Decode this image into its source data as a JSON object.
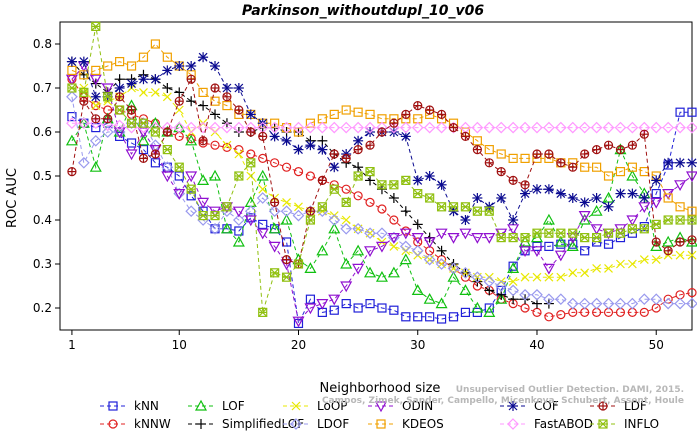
{
  "chart_data": {
    "type": "line",
    "title": "Parkinson_withoutdupl_10_v06",
    "xlabel": "Neighborhood size",
    "ylabel": "ROC AUC",
    "xlim": [
      0,
      53
    ],
    "ylim": [
      0.15,
      0.85
    ],
    "xticks": [
      1,
      10,
      20,
      30,
      40,
      50
    ],
    "yticks": [
      0.2,
      0.3,
      0.4,
      0.5,
      0.6,
      0.7,
      0.8
    ],
    "grid": false,
    "legend_position": "bottom",
    "watermark": [
      "Unsupervised Outlier Detection. DAMI, 2015.",
      "Campos, Zimek, Sander, Campello, Micenkova, Schubert, Assent, Houle"
    ],
    "series": [
      {
        "name": "kNN",
        "color": "#2020d8",
        "marker": "square",
        "values": [
          0.635,
          0.62,
          0.61,
          0.62,
          0.59,
          0.575,
          0.56,
          0.53,
          0.52,
          0.5,
          0.455,
          0.42,
          0.38,
          0.38,
          0.375,
          0.405,
          0.39,
          0.38,
          0.35,
          0.165,
          0.22,
          0.19,
          0.195,
          0.21,
          0.2,
          0.21,
          0.2,
          0.195,
          0.18,
          0.18,
          0.18,
          0.175,
          0.18,
          0.19,
          0.19,
          0.2,
          0.24,
          0.295,
          0.33,
          0.34,
          0.34,
          0.345,
          0.345,
          0.33,
          0.35,
          0.345,
          0.36,
          0.37,
          0.385,
          0.46,
          0.525,
          0.645,
          0.645
        ]
      },
      {
        "name": "kNNW",
        "color": "#e02020",
        "marker": "circle",
        "values": [
          0.72,
          0.68,
          0.66,
          0.65,
          0.65,
          0.64,
          0.63,
          0.62,
          0.6,
          0.59,
          0.585,
          0.575,
          0.57,
          0.565,
          0.56,
          0.55,
          0.54,
          0.53,
          0.52,
          0.51,
          0.5,
          0.49,
          0.48,
          0.47,
          0.455,
          0.44,
          0.425,
          0.4,
          0.375,
          0.35,
          0.33,
          0.31,
          0.29,
          0.27,
          0.25,
          0.24,
          0.22,
          0.21,
          0.2,
          0.19,
          0.18,
          0.185,
          0.19,
          0.19,
          0.19,
          0.19,
          0.19,
          0.19,
          0.19,
          0.2,
          0.22,
          0.23,
          0.235
        ]
      },
      {
        "name": "LOF",
        "color": "#10c010",
        "marker": "triangle-up",
        "values": [
          0.58,
          0.62,
          0.52,
          0.63,
          0.6,
          0.66,
          0.58,
          0.62,
          0.6,
          0.61,
          0.58,
          0.49,
          0.5,
          0.38,
          0.35,
          0.44,
          0.5,
          0.38,
          0.4,
          0.31,
          0.29,
          0.33,
          0.38,
          0.3,
          0.33,
          0.28,
          0.27,
          0.28,
          0.31,
          0.24,
          0.22,
          0.21,
          0.27,
          0.24,
          0.2,
          0.19,
          0.22,
          0.29,
          0.35,
          0.36,
          0.4,
          0.35,
          0.34,
          0.4,
          0.42,
          0.45,
          0.56,
          0.5,
          0.46,
          0.34,
          0.35,
          0.36,
          0.35
        ]
      },
      {
        "name": "SimplifiedLOF",
        "color": "#000000",
        "marker": "plus",
        "values": [
          0.76,
          0.73,
          0.71,
          0.69,
          0.72,
          0.72,
          0.73,
          0.72,
          0.7,
          0.69,
          0.67,
          0.66,
          0.64,
          0.62,
          0.6,
          0.6,
          0.61,
          0.61,
          0.6,
          0.6,
          0.58,
          0.58,
          0.55,
          0.53,
          0.52,
          0.49,
          0.47,
          0.45,
          0.42,
          0.39,
          0.36,
          0.33,
          0.3,
          0.28,
          0.26,
          0.24,
          0.23,
          0.22,
          0.22,
          0.21,
          0.21,
          null,
          null,
          null,
          null,
          null,
          null,
          null,
          null,
          null,
          null,
          null,
          null
        ]
      },
      {
        "name": "LoOP",
        "color": "#e8e800",
        "marker": "x",
        "values": [
          0.7,
          0.7,
          0.66,
          0.67,
          0.68,
          0.7,
          0.69,
          0.69,
          0.68,
          0.65,
          0.6,
          0.62,
          0.6,
          0.57,
          0.55,
          0.5,
          0.47,
          0.45,
          0.44,
          0.43,
          0.42,
          0.42,
          0.41,
          0.4,
          0.38,
          0.37,
          0.35,
          0.34,
          0.33,
          0.32,
          0.31,
          0.3,
          0.29,
          0.28,
          0.27,
          0.27,
          0.26,
          0.26,
          0.27,
          0.27,
          0.27,
          0.27,
          0.28,
          0.28,
          0.29,
          0.29,
          0.3,
          0.3,
          0.31,
          0.31,
          0.32,
          0.32,
          0.32
        ]
      },
      {
        "name": "LDOF",
        "color": "#9999ee",
        "marker": "diamond",
        "values": [
          0.68,
          0.53,
          0.58,
          0.6,
          0.6,
          0.62,
          0.62,
          0.57,
          0.52,
          0.46,
          0.42,
          0.4,
          0.38,
          0.42,
          0.4,
          0.42,
          0.45,
          0.42,
          0.42,
          0.41,
          0.42,
          0.42,
          0.4,
          0.38,
          0.38,
          0.37,
          0.37,
          0.36,
          0.34,
          0.33,
          0.31,
          0.3,
          0.29,
          0.28,
          0.27,
          0.26,
          0.25,
          0.24,
          0.23,
          0.23,
          0.22,
          0.22,
          0.21,
          0.21,
          0.21,
          0.21,
          0.21,
          0.21,
          0.22,
          0.22,
          0.21,
          0.21,
          0.21
        ]
      },
      {
        "name": "ODIN",
        "color": "#9010d0",
        "marker": "triangle-down",
        "values": [
          0.72,
          0.75,
          0.72,
          0.7,
          0.6,
          0.55,
          0.6,
          0.56,
          0.5,
          0.46,
          0.5,
          0.44,
          0.42,
          0.43,
          0.42,
          0.4,
          0.37,
          0.34,
          0.3,
          0.17,
          0.2,
          0.21,
          0.22,
          0.25,
          0.29,
          0.33,
          0.34,
          0.36,
          0.37,
          0.36,
          0.35,
          0.37,
          0.36,
          0.37,
          0.36,
          0.36,
          0.37,
          0.38,
          0.33,
          0.33,
          0.29,
          0.32,
          0.36,
          0.41,
          0.38,
          0.37,
          0.38,
          0.4,
          0.43,
          0.44,
          0.46,
          0.48,
          0.5
        ]
      },
      {
        "name": "KDEOS",
        "color": "#f0a000",
        "marker": "square",
        "values": [
          0.74,
          0.73,
          0.74,
          0.75,
          0.76,
          0.75,
          0.77,
          0.8,
          0.77,
          0.75,
          0.73,
          0.69,
          0.67,
          0.66,
          0.64,
          0.64,
          0.62,
          0.62,
          0.61,
          0.6,
          0.62,
          0.63,
          0.64,
          0.65,
          0.645,
          0.64,
          0.63,
          0.63,
          0.63,
          0.63,
          0.64,
          0.63,
          0.62,
          0.6,
          0.58,
          0.56,
          0.55,
          0.54,
          0.54,
          0.54,
          0.54,
          0.53,
          0.53,
          0.52,
          0.52,
          0.5,
          0.51,
          0.52,
          0.51,
          0.5,
          0.45,
          0.43,
          0.42
        ]
      },
      {
        "name": "COF",
        "color": "#0a0a90",
        "marker": "asterisk",
        "values": [
          0.76,
          0.76,
          0.68,
          0.68,
          0.7,
          0.71,
          0.72,
          0.72,
          0.74,
          0.75,
          0.75,
          0.77,
          0.75,
          0.7,
          0.7,
          0.64,
          0.62,
          0.59,
          0.58,
          0.56,
          0.57,
          0.56,
          0.52,
          0.55,
          0.58,
          0.6,
          0.6,
          0.6,
          0.59,
          0.49,
          0.5,
          0.48,
          0.42,
          0.4,
          0.45,
          0.43,
          0.45,
          0.4,
          0.46,
          0.47,
          0.47,
          0.46,
          0.45,
          0.44,
          0.45,
          0.43,
          0.46,
          0.46,
          0.45,
          0.49,
          0.53,
          0.53,
          0.53
        ]
      },
      {
        "name": "FastABOD",
        "color": "#ff99ff",
        "marker": "diamond",
        "values": [
          0.62,
          0.62,
          0.62,
          0.615,
          0.615,
          0.61,
          0.61,
          0.61,
          0.61,
          0.61,
          0.61,
          0.61,
          0.61,
          0.61,
          0.61,
          0.61,
          0.61,
          0.61,
          0.61,
          0.61,
          0.61,
          0.61,
          0.61,
          0.61,
          0.61,
          0.61,
          0.61,
          0.61,
          0.61,
          0.61,
          0.61,
          0.61,
          0.61,
          0.61,
          0.61,
          0.61,
          0.61,
          0.61,
          0.61,
          0.61,
          0.61,
          0.61,
          0.61,
          0.61,
          0.61,
          0.61,
          0.61,
          0.61,
          0.61,
          0.61,
          0.61,
          0.61,
          0.61
        ]
      },
      {
        "name": "LDF",
        "color": "#a01010",
        "marker": "circle-plus",
        "values": [
          0.51,
          0.67,
          0.63,
          0.63,
          0.68,
          0.65,
          0.54,
          0.55,
          0.6,
          0.67,
          0.72,
          0.58,
          0.7,
          0.68,
          0.65,
          0.6,
          0.59,
          0.44,
          0.31,
          0.3,
          0.42,
          0.49,
          0.55,
          0.54,
          0.56,
          0.57,
          0.6,
          0.62,
          0.64,
          0.66,
          0.65,
          0.64,
          0.61,
          0.59,
          0.56,
          0.53,
          0.51,
          0.49,
          0.48,
          0.55,
          0.55,
          0.53,
          0.52,
          0.55,
          0.56,
          0.57,
          0.56,
          0.57,
          0.595,
          0.35,
          0.33,
          0.35,
          0.355
        ]
      },
      {
        "name": "INFLO",
        "color": "#90c010",
        "marker": "star-box",
        "values": [
          0.7,
          0.69,
          0.84,
          0.68,
          0.65,
          0.62,
          0.62,
          0.6,
          0.56,
          0.52,
          0.47,
          0.41,
          0.41,
          0.43,
          0.5,
          0.53,
          0.19,
          0.28,
          0.27,
          0.3,
          0.4,
          0.43,
          0.47,
          0.44,
          0.5,
          0.51,
          0.48,
          0.48,
          0.49,
          0.46,
          0.45,
          0.43,
          0.43,
          0.43,
          0.42,
          0.42,
          0.36,
          0.36,
          0.36,
          0.37,
          0.37,
          0.37,
          0.37,
          0.36,
          0.36,
          0.37,
          0.37,
          0.38,
          0.38,
          0.39,
          0.4,
          0.4,
          0.4
        ]
      }
    ]
  }
}
